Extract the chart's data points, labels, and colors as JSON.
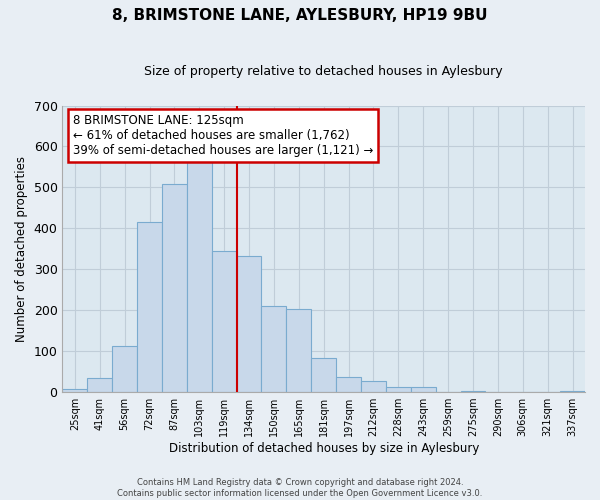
{
  "title": "8, BRIMSTONE LANE, AYLESBURY, HP19 9BU",
  "subtitle": "Size of property relative to detached houses in Aylesbury",
  "xlabel": "Distribution of detached houses by size in Aylesbury",
  "ylabel": "Number of detached properties",
  "bar_labels": [
    "25sqm",
    "41sqm",
    "56sqm",
    "72sqm",
    "87sqm",
    "103sqm",
    "119sqm",
    "134sqm",
    "150sqm",
    "165sqm",
    "181sqm",
    "197sqm",
    "212sqm",
    "228sqm",
    "243sqm",
    "259sqm",
    "275sqm",
    "290sqm",
    "306sqm",
    "321sqm",
    "337sqm"
  ],
  "bar_heights": [
    8,
    35,
    113,
    416,
    509,
    575,
    344,
    333,
    211,
    202,
    83,
    37,
    26,
    13,
    13,
    0,
    3,
    0,
    0,
    0,
    2
  ],
  "bar_color": "#c8d8ea",
  "bar_edge_color": "#7aabcf",
  "ylim": [
    0,
    700
  ],
  "yticks": [
    0,
    100,
    200,
    300,
    400,
    500,
    600,
    700
  ],
  "property_line_label": "8 BRIMSTONE LANE: 125sqm",
  "annotation_line1": "← 61% of detached houses are smaller (1,762)",
  "annotation_line2": "39% of semi-detached houses are larger (1,121) →",
  "annotation_box_color": "#ffffff",
  "annotation_box_edge_color": "#cc0000",
  "property_line_color": "#cc0000",
  "footer1": "Contains HM Land Registry data © Crown copyright and database right 2024.",
  "footer2": "Contains public sector information licensed under the Open Government Licence v3.0.",
  "background_color": "#e8eef4",
  "plot_background_color": "#dce8f0",
  "grid_color": "#c0cdd8"
}
